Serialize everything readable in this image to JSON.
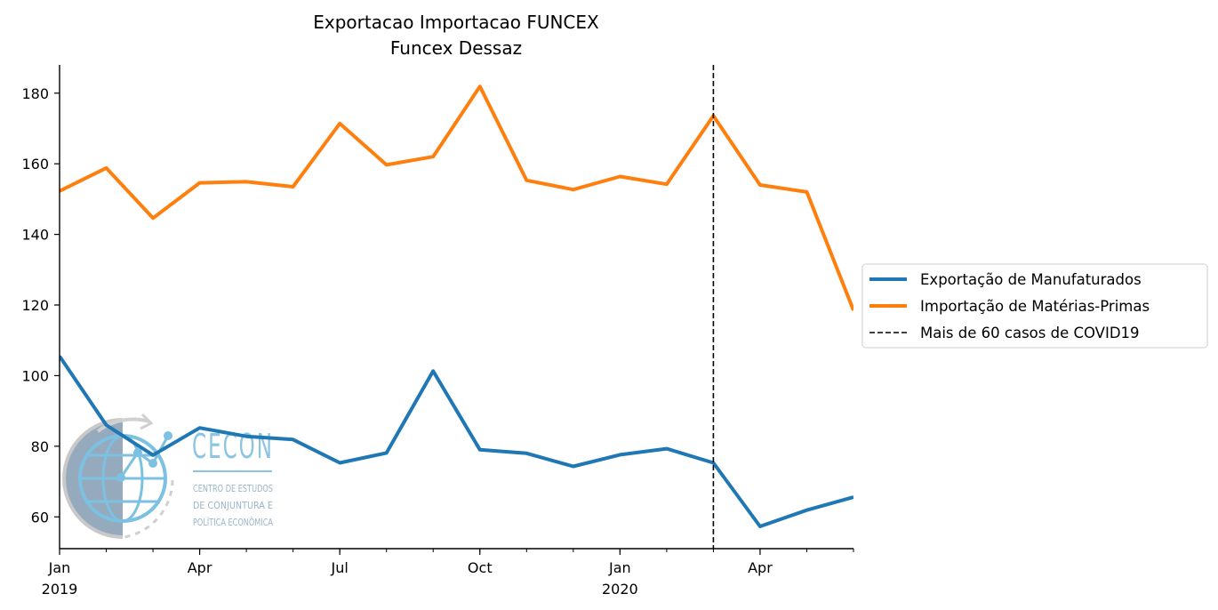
{
  "chart_data": {
    "type": "line",
    "title": "Exportacao Importacao FUNCEX",
    "subtitle": "Funcex Dessaz",
    "xlabel": "",
    "ylabel": "",
    "x": [
      "2019-01",
      "2019-02",
      "2019-03",
      "2019-04",
      "2019-05",
      "2019-06",
      "2019-07",
      "2019-08",
      "2019-09",
      "2019-10",
      "2019-11",
      "2019-12",
      "2020-01",
      "2020-02",
      "2020-03",
      "2020-04",
      "2020-05",
      "2020-06"
    ],
    "x_ticks": [
      {
        "x": "2019-01",
        "label": "Jan",
        "year": "2019"
      },
      {
        "x": "2019-04",
        "label": "Apr",
        "year": ""
      },
      {
        "x": "2019-07",
        "label": "Jul",
        "year": ""
      },
      {
        "x": "2019-10",
        "label": "Oct",
        "year": ""
      },
      {
        "x": "2020-01",
        "label": "Jan",
        "year": "2020"
      },
      {
        "x": "2020-04",
        "label": "Apr",
        "year": ""
      }
    ],
    "xlim": [
      "2019-01",
      "2020-06"
    ],
    "ylim": [
      51,
      188
    ],
    "y_ticks": [
      60,
      80,
      100,
      120,
      140,
      160,
      180
    ],
    "series": [
      {
        "name": "Exportação de Manufaturados",
        "color": "#1f77b4",
        "values": [
          105.5,
          86,
          77.5,
          85.2,
          82.8,
          81.9,
          75.3,
          78.1,
          101.3,
          79,
          78,
          74.3,
          77.6,
          79.3,
          75.3,
          57.3,
          61.9,
          65.6
        ]
      },
      {
        "name": "Importação de Matérias-Primas",
        "color": "#ff7f0e",
        "values": [
          152.3,
          158.8,
          144.6,
          154.6,
          154.9,
          153.5,
          171.4,
          159.7,
          162,
          181.9,
          155.3,
          152.7,
          156.4,
          154.2,
          173.6,
          154,
          152,
          118.5
        ]
      }
    ],
    "vline": {
      "x": "2020-03",
      "name": "Mais de 60 casos de COVID19",
      "color": "#000000",
      "style": "dashed"
    },
    "legend_position": "right",
    "grid": false
  },
  "logo": {
    "name": "CECON",
    "line1": "CENTRO DE ESTUDOS",
    "line2": "DE CONJUNTURA E",
    "line3": "POLÍTICA ECONÔMICA"
  }
}
